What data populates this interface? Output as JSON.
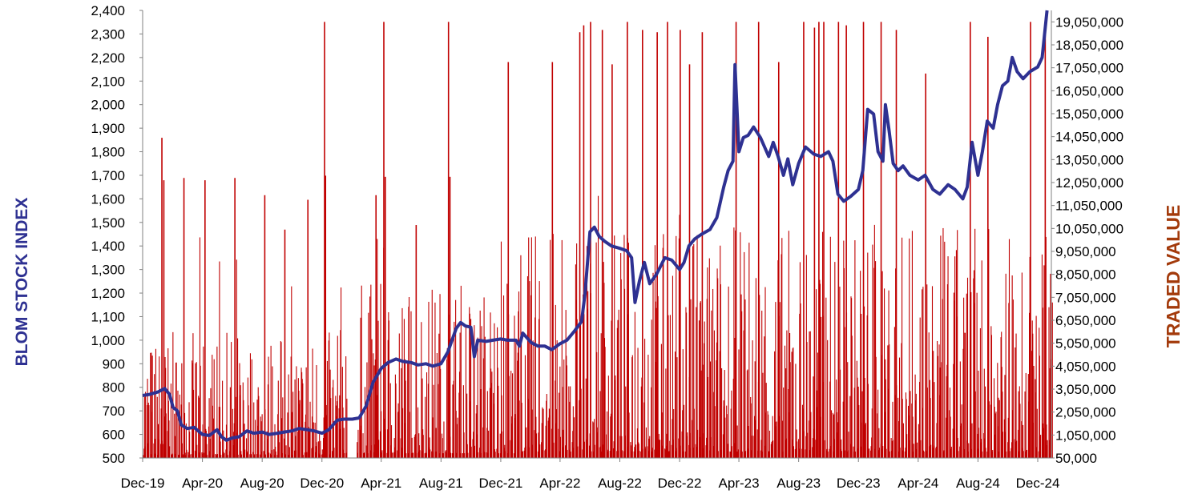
{
  "chart_data": {
    "type": "bar+line",
    "title": "",
    "xlabel": "",
    "ylabel_left": "BLOM STOCK INDEX",
    "ylabel_right": "TRADED VALUE",
    "x_ticks": [
      "Dec-19",
      "Apr-20",
      "Aug-20",
      "Dec-20",
      "Apr-21",
      "Aug-21",
      "Dec-21",
      "Apr-22",
      "Aug-22",
      "Dec-22",
      "Apr-23",
      "Aug-23",
      "Dec-23",
      "Apr-24",
      "Aug-24",
      "Dec-24"
    ],
    "y_left": {
      "min": 500,
      "max": 2400,
      "step": 100
    },
    "y_right": {
      "min": 50000,
      "max": 19050000,
      "step": 1000000
    },
    "grid": false,
    "legend": "none",
    "colors": {
      "index_line": "#2E3192",
      "traded_bars": "#C00000"
    },
    "series": [
      {
        "name": "BLOM STOCK INDEX",
        "type": "line",
        "axis": "left",
        "points": [
          [
            "2019-12-01",
            765
          ],
          [
            "2019-12-15",
            770
          ],
          [
            "2020-01-01",
            780
          ],
          [
            "2020-01-15",
            795
          ],
          [
            "2020-01-25",
            770
          ],
          [
            "2020-02-01",
            715
          ],
          [
            "2020-02-10",
            700
          ],
          [
            "2020-02-18",
            640
          ],
          [
            "2020-03-01",
            625
          ],
          [
            "2020-03-15",
            630
          ],
          [
            "2020-04-01",
            600
          ],
          [
            "2020-04-15",
            595
          ],
          [
            "2020-05-01",
            620
          ],
          [
            "2020-05-10",
            590
          ],
          [
            "2020-05-20",
            575
          ],
          [
            "2020-06-01",
            585
          ],
          [
            "2020-06-15",
            590
          ],
          [
            "2020-07-01",
            615
          ],
          [
            "2020-07-15",
            605
          ],
          [
            "2020-08-01",
            610
          ],
          [
            "2020-08-15",
            600
          ],
          [
            "2020-09-01",
            605
          ],
          [
            "2020-09-15",
            610
          ],
          [
            "2020-10-01",
            615
          ],
          [
            "2020-10-15",
            625
          ],
          [
            "2020-11-01",
            620
          ],
          [
            "2020-11-15",
            615
          ],
          [
            "2020-12-01",
            605
          ],
          [
            "2020-12-15",
            620
          ],
          [
            "2021-01-01",
            660
          ],
          [
            "2021-01-15",
            665
          ],
          [
            "2021-02-01",
            665
          ],
          [
            "2021-02-15",
            670
          ],
          [
            "2021-03-01",
            720
          ],
          [
            "2021-03-15",
            820
          ],
          [
            "2021-04-01",
            880
          ],
          [
            "2021-04-15",
            905
          ],
          [
            "2021-05-01",
            920
          ],
          [
            "2021-05-15",
            910
          ],
          [
            "2021-06-01",
            905
          ],
          [
            "2021-06-15",
            895
          ],
          [
            "2021-07-01",
            900
          ],
          [
            "2021-07-15",
            890
          ],
          [
            "2021-08-01",
            900
          ],
          [
            "2021-08-15",
            950
          ],
          [
            "2021-09-01",
            1050
          ],
          [
            "2021-09-10",
            1075
          ],
          [
            "2021-09-20",
            1060
          ],
          [
            "2021-10-01",
            1055
          ],
          [
            "2021-10-08",
            930
          ],
          [
            "2021-10-15",
            1000
          ],
          [
            "2021-11-01",
            995
          ],
          [
            "2021-11-15",
            1000
          ],
          [
            "2021-12-01",
            1005
          ],
          [
            "2021-12-15",
            1000
          ],
          [
            "2022-01-01",
            1000
          ],
          [
            "2022-01-08",
            975
          ],
          [
            "2022-01-15",
            1030
          ],
          [
            "2022-02-01",
            990
          ],
          [
            "2022-02-15",
            975
          ],
          [
            "2022-03-01",
            975
          ],
          [
            "2022-03-15",
            960
          ],
          [
            "2022-04-01",
            985
          ],
          [
            "2022-04-15",
            1000
          ],
          [
            "2022-05-01",
            1040
          ],
          [
            "2022-05-15",
            1080
          ],
          [
            "2022-05-22",
            1200
          ],
          [
            "2022-06-01",
            1460
          ],
          [
            "2022-06-10",
            1480
          ],
          [
            "2022-06-20",
            1440
          ],
          [
            "2022-07-01",
            1420
          ],
          [
            "2022-07-15",
            1400
          ],
          [
            "2022-08-01",
            1390
          ],
          [
            "2022-08-15",
            1380
          ],
          [
            "2022-08-25",
            1350
          ],
          [
            "2022-09-01",
            1160
          ],
          [
            "2022-09-10",
            1250
          ],
          [
            "2022-09-20",
            1330
          ],
          [
            "2022-10-01",
            1240
          ],
          [
            "2022-10-15",
            1280
          ],
          [
            "2022-11-01",
            1350
          ],
          [
            "2022-11-15",
            1340
          ],
          [
            "2022-12-01",
            1300
          ],
          [
            "2022-12-10",
            1330
          ],
          [
            "2022-12-20",
            1400
          ],
          [
            "2023-01-01",
            1430
          ],
          [
            "2023-01-15",
            1450
          ],
          [
            "2023-02-01",
            1470
          ],
          [
            "2023-02-15",
            1520
          ],
          [
            "2023-03-01",
            1650
          ],
          [
            "2023-03-10",
            1720
          ],
          [
            "2023-03-20",
            1760
          ],
          [
            "2023-03-24",
            2170
          ],
          [
            "2023-04-01",
            1800
          ],
          [
            "2023-04-10",
            1860
          ],
          [
            "2023-04-20",
            1870
          ],
          [
            "2023-05-01",
            1905
          ],
          [
            "2023-05-15",
            1860
          ],
          [
            "2023-06-01",
            1780
          ],
          [
            "2023-06-10",
            1840
          ],
          [
            "2023-06-20",
            1780
          ],
          [
            "2023-07-01",
            1700
          ],
          [
            "2023-07-10",
            1770
          ],
          [
            "2023-07-20",
            1660
          ],
          [
            "2023-08-01",
            1750
          ],
          [
            "2023-08-15",
            1820
          ],
          [
            "2023-09-01",
            1790
          ],
          [
            "2023-09-15",
            1780
          ],
          [
            "2023-10-01",
            1800
          ],
          [
            "2023-10-10",
            1760
          ],
          [
            "2023-10-20",
            1620
          ],
          [
            "2023-11-01",
            1590
          ],
          [
            "2023-11-15",
            1610
          ],
          [
            "2023-12-01",
            1640
          ],
          [
            "2023-12-10",
            1720
          ],
          [
            "2023-12-20",
            1980
          ],
          [
            "2024-01-01",
            1960
          ],
          [
            "2024-01-10",
            1800
          ],
          [
            "2024-01-20",
            1760
          ],
          [
            "2024-01-25",
            2000
          ],
          [
            "2024-02-01",
            1900
          ],
          [
            "2024-02-10",
            1750
          ],
          [
            "2024-02-20",
            1720
          ],
          [
            "2024-03-01",
            1740
          ],
          [
            "2024-03-15",
            1700
          ],
          [
            "2024-04-01",
            1680
          ],
          [
            "2024-04-15",
            1700
          ],
          [
            "2024-05-01",
            1640
          ],
          [
            "2024-05-15",
            1620
          ],
          [
            "2024-06-01",
            1660
          ],
          [
            "2024-06-15",
            1640
          ],
          [
            "2024-07-01",
            1600
          ],
          [
            "2024-07-10",
            1650
          ],
          [
            "2024-07-20",
            1840
          ],
          [
            "2024-08-01",
            1700
          ],
          [
            "2024-08-10",
            1800
          ],
          [
            "2024-08-20",
            1930
          ],
          [
            "2024-09-01",
            1900
          ],
          [
            "2024-09-10",
            2000
          ],
          [
            "2024-09-20",
            2080
          ],
          [
            "2024-10-01",
            2100
          ],
          [
            "2024-10-10",
            2200
          ],
          [
            "2024-10-20",
            2140
          ],
          [
            "2024-11-01",
            2110
          ],
          [
            "2024-11-15",
            2140
          ],
          [
            "2024-12-01",
            2160
          ],
          [
            "2024-12-10",
            2200
          ],
          [
            "2024-12-20",
            2400
          ]
        ]
      },
      {
        "name": "TRADED VALUE",
        "type": "bar",
        "axis": "right",
        "approx_daily_range": [
          50000,
          19050000
        ],
        "gap": [
          "2021-01-20",
          "2021-02-10"
        ],
        "spikes": [
          [
            "2020-01-08",
            14000000
          ],
          [
            "2020-01-12",
            12150000
          ],
          [
            "2020-02-22",
            12250000
          ],
          [
            "2020-04-05",
            12150000
          ],
          [
            "2020-06-05",
            12250000
          ],
          [
            "2020-08-05",
            11500000
          ],
          [
            "2020-09-15",
            10000000
          ],
          [
            "2020-11-01",
            11300000
          ],
          [
            "2020-12-05",
            19050000
          ],
          [
            "2020-12-07",
            12350000
          ],
          [
            "2021-03-20",
            11500000
          ],
          [
            "2021-04-05",
            19050000
          ],
          [
            "2021-04-08",
            12300000
          ],
          [
            "2021-06-10",
            10200000
          ],
          [
            "2021-08-15",
            19050000
          ],
          [
            "2021-08-18",
            12300000
          ],
          [
            "2021-12-15",
            17300000
          ],
          [
            "2022-03-15",
            17300000
          ],
          [
            "2022-05-10",
            18600000
          ],
          [
            "2022-05-18",
            18900000
          ],
          [
            "2022-06-01",
            19050000
          ],
          [
            "2022-06-25",
            18700000
          ],
          [
            "2022-07-15",
            17200000
          ],
          [
            "2022-08-15",
            19050000
          ],
          [
            "2022-09-15",
            18700000
          ],
          [
            "2022-10-15",
            18600000
          ],
          [
            "2022-11-05",
            19050000
          ],
          [
            "2022-12-01",
            18700000
          ],
          [
            "2022-12-20",
            17200000
          ],
          [
            "2023-01-15",
            18600000
          ],
          [
            "2023-03-25",
            19050000
          ],
          [
            "2023-05-10",
            19050000
          ],
          [
            "2023-06-20",
            17300000
          ],
          [
            "2023-08-10",
            19050000
          ],
          [
            "2023-09-01",
            18800000
          ],
          [
            "2023-09-10",
            19050000
          ],
          [
            "2023-09-20",
            19050000
          ],
          [
            "2023-10-20",
            19050000
          ],
          [
            "2023-11-05",
            18900000
          ],
          [
            "2023-12-10",
            19050000
          ],
          [
            "2024-01-15",
            19050000
          ],
          [
            "2024-02-15",
            18700000
          ],
          [
            "2024-04-15",
            16800000
          ],
          [
            "2024-07-15",
            19050000
          ],
          [
            "2024-08-20",
            18400000
          ],
          [
            "2024-11-15",
            19050000
          ],
          [
            "2024-12-15",
            19050000
          ]
        ]
      }
    ]
  }
}
